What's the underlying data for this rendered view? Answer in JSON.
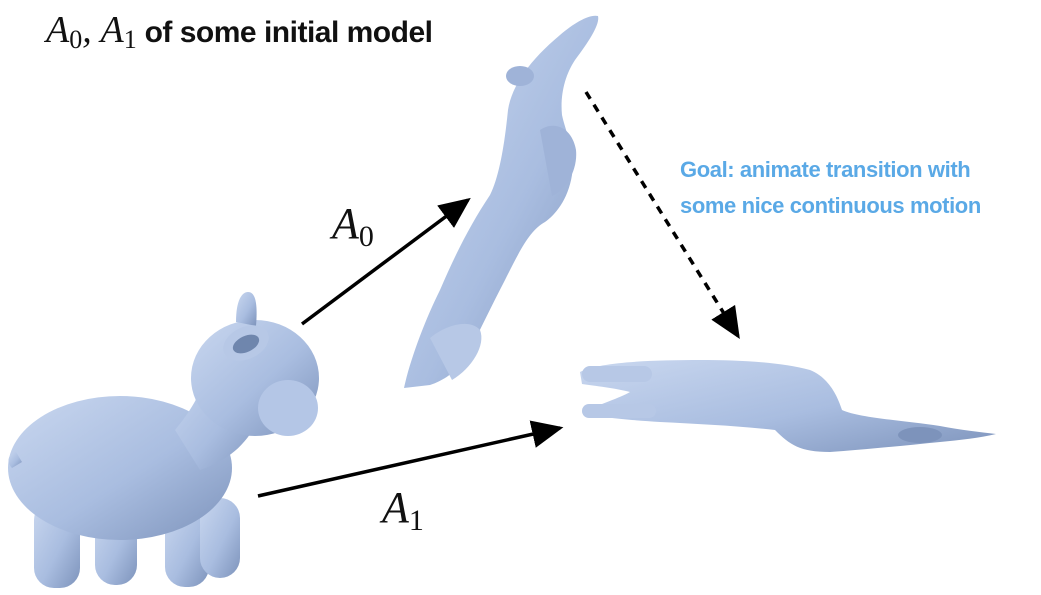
{
  "title": {
    "var0": "A",
    "sub0": "0",
    "sep": ", ",
    "var1": "A",
    "sub1": "1",
    "text": " of some initial model"
  },
  "goal": {
    "line1": "Goal: animate transition with",
    "line2": "some nice continuous motion"
  },
  "arrows": {
    "a0": {
      "var": "A",
      "sub": "0"
    },
    "a1": {
      "var": "A",
      "sub": "1"
    }
  },
  "colors": {
    "model_fill": "#a9bde0",
    "model_shadow": "#7d93bb",
    "goal_text": "#5aa9e6",
    "arrow": "#000000"
  }
}
